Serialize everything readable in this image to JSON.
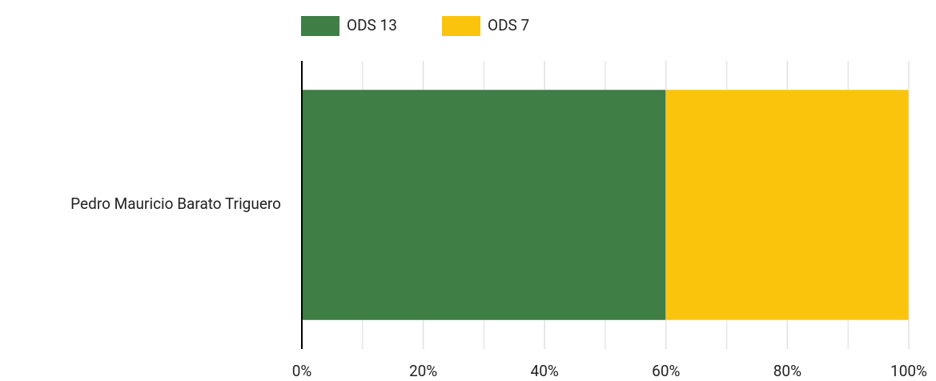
{
  "chart_data": {
    "type": "stacked-bar-horizontal",
    "categories": [
      "Pedro Mauricio Barato Triguero"
    ],
    "series": [
      {
        "name": "ODS 13",
        "color": "#3f7e45",
        "values": [
          60
        ]
      },
      {
        "name": "ODS 7",
        "color": "#fbc40c",
        "values": [
          40
        ]
      }
    ],
    "xlim": [
      0,
      100
    ],
    "xticks": [
      {
        "value": 0,
        "label": "0%"
      },
      {
        "value": 20,
        "label": "20%"
      },
      {
        "value": 40,
        "label": "40%"
      },
      {
        "value": 60,
        "label": "60%"
      },
      {
        "value": 80,
        "label": "80%"
      },
      {
        "value": 100,
        "label": "100%"
      }
    ],
    "xminorticks": [
      10,
      30,
      50,
      70,
      90
    ],
    "grid": true,
    "legend": "top"
  }
}
